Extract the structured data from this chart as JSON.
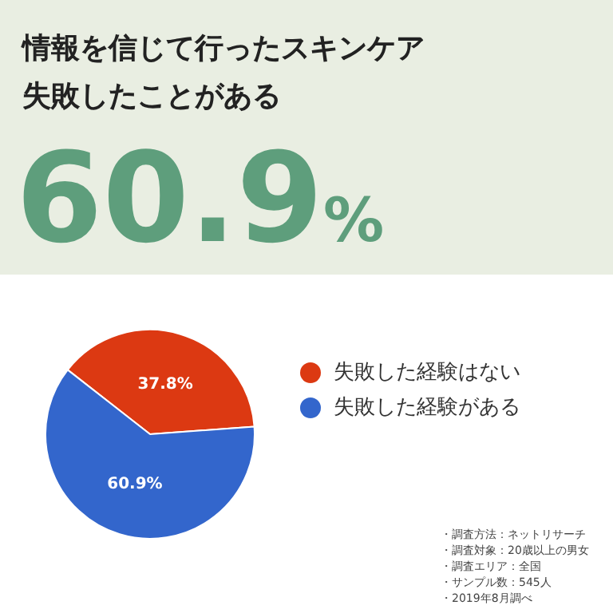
{
  "chart_data": {
    "type": "pie",
    "title": "情報を信じて行ったスキンケア失敗したことがある",
    "subtitle": "60.9%",
    "categories": [
      "失敗した経験はない",
      "失敗した経験がある"
    ],
    "values": [
      37.8,
      60.9
    ],
    "value_labels": [
      "37.8%",
      "60.9%"
    ],
    "colors": [
      "#dc3912",
      "#3366cc"
    ],
    "legend": "right",
    "annotations": [
      "・調査方法：ネットリサーチ",
      "・調査対象：20歳以上の男女",
      "・調査エリア：全国",
      "・サンプル数：545人",
      "・2019年8月調べ"
    ]
  }
}
